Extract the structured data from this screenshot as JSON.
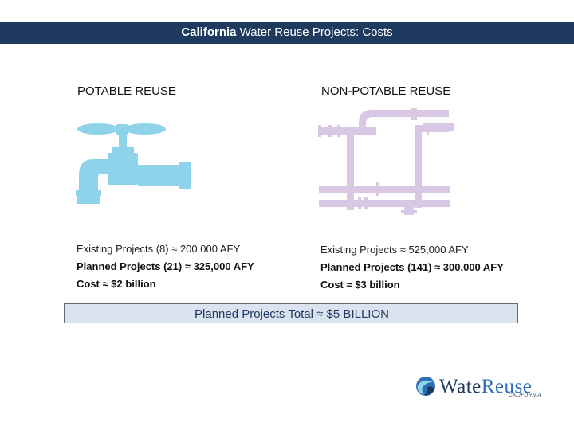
{
  "title": {
    "bold": "California",
    "rest": " Water Reuse Projects: Costs"
  },
  "columns": {
    "potable": {
      "heading": "POTABLE REUSE",
      "existing": "Existing Projects (8) ≈ 200,000 AFY",
      "planned": "Planned Projects (21) ≈ 325,000 AFY",
      "cost": "Cost ≈ $2 billion"
    },
    "non_potable": {
      "heading": "NON-POTABLE REUSE",
      "existing": "Existing Projects ≈ 525,000 AFY",
      "planned": "Planned Projects (141) ≈ 300,000 AFY",
      "cost": "Cost ≈ $3 billion"
    }
  },
  "summary": "Planned Projects Total ≈ $5 BILLION",
  "logo": {
    "word_a": "Wate",
    "word_b": "Reuse",
    "sub": "CALIFORNIA"
  },
  "colors": {
    "title_bar": "#1f3a5f",
    "faucet": "#8fd3ea",
    "pipes": "#d8c8e4",
    "summary_fill": "#dbe3f1"
  },
  "icons": [
    "faucet-icon",
    "pipes-icon",
    "watereuse-globe-icon"
  ]
}
